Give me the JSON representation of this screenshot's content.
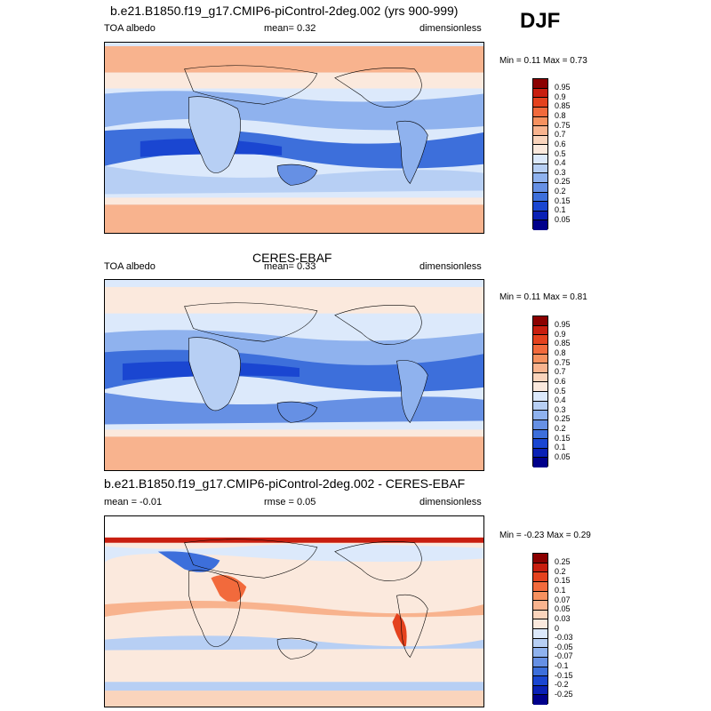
{
  "season": "DJF",
  "panels": [
    {
      "title": "b.e21.B1850.f19_g17.CMIP6-piControl-2deg.002 (yrs 900-999)",
      "left_label": "TOA albedo",
      "center_label": "mean=   0.32",
      "right_label": "dimensionless",
      "minmax": "Min =   0.11 Max =   0.73",
      "colorbar": {
        "levels": [
          "0.95",
          "0.9",
          "0.85",
          "0.8",
          "0.75",
          "0.7",
          "0.6",
          "0.5",
          "0.4",
          "0.3",
          "0.25",
          "0.2",
          "0.15",
          "0.1",
          "0.05"
        ],
        "colors": [
          "#8b0000",
          "#c81e0f",
          "#e4421e",
          "#f26a3c",
          "#f6915f",
          "#f8b38e",
          "#fad4bc",
          "#fbe9dd",
          "#dce9fb",
          "#b7cff4",
          "#8fb2ee",
          "#6690e4",
          "#3d6fdb",
          "#1a46d1",
          "#0a21b5",
          "#00008b"
        ]
      }
    },
    {
      "title": "CERES-EBAF",
      "left_label": "TOA albedo",
      "center_label": "mean=   0.33",
      "right_label": "dimensionless",
      "minmax": "Min =   0.11 Max =   0.81",
      "colorbar": {
        "levels": [
          "0.95",
          "0.9",
          "0.85",
          "0.8",
          "0.75",
          "0.7",
          "0.6",
          "0.5",
          "0.4",
          "0.3",
          "0.25",
          "0.2",
          "0.15",
          "0.1",
          "0.05"
        ],
        "colors": [
          "#8b0000",
          "#c81e0f",
          "#e4421e",
          "#f26a3c",
          "#f6915f",
          "#f8b38e",
          "#fad4bc",
          "#fbe9dd",
          "#dce9fb",
          "#b7cff4",
          "#8fb2ee",
          "#6690e4",
          "#3d6fdb",
          "#1a46d1",
          "#0a21b5",
          "#00008b"
        ]
      }
    },
    {
      "title": "b.e21.B1850.f19_g17.CMIP6-piControl-2deg.002 - CERES-EBAF",
      "left_label": "mean =  -0.01",
      "center_label": "rmse =   0.05",
      "right_label": "dimensionless",
      "minmax": "Min =  -0.23 Max =   0.29",
      "colorbar": {
        "levels": [
          "0.25",
          "0.2",
          "0.15",
          "0.1",
          "0.07",
          "0.05",
          "0.03",
          "0",
          "-0.03",
          "-0.05",
          "-0.07",
          "-0.1",
          "-0.15",
          "-0.2",
          "-0.25"
        ],
        "colors": [
          "#8b0000",
          "#c81e0f",
          "#e4421e",
          "#f26a3c",
          "#f6915f",
          "#f8b38e",
          "#fad4bc",
          "#fbe9dd",
          "#dce9fb",
          "#b7cff4",
          "#8fb2ee",
          "#6690e4",
          "#3d6fdb",
          "#1a46d1",
          "#0a21b5",
          "#00008b"
        ]
      }
    }
  ]
}
